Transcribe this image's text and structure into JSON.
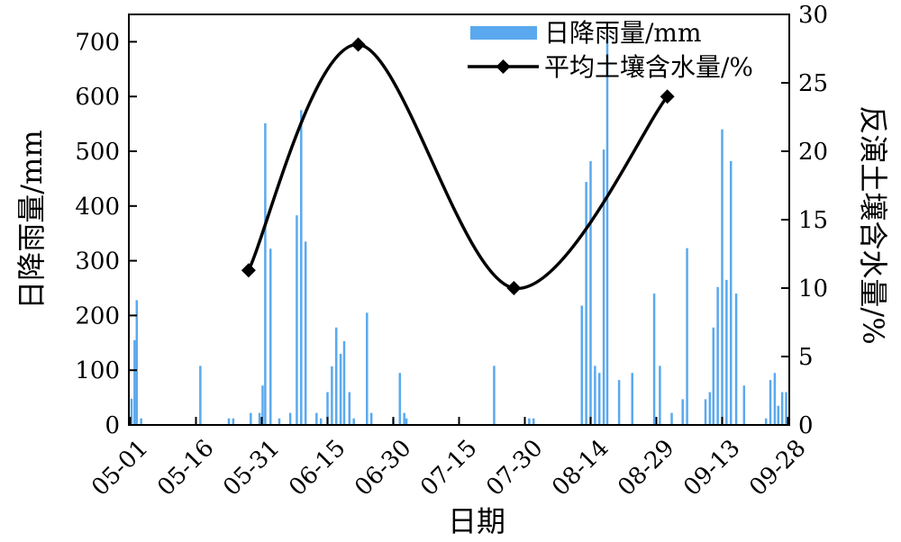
{
  "chart_data": {
    "type": "bar+line",
    "xlabel": "日期",
    "ylabel_left": "日降雨量/mm",
    "ylabel_right": "反演土壤含水量/%",
    "ylim_left": [
      0,
      750
    ],
    "ylim_right": [
      0,
      30
    ],
    "yticks_left": [
      "0",
      "100",
      "200",
      "300",
      "400",
      "500",
      "600",
      "700"
    ],
    "yticks_right": [
      "0",
      "5",
      "10",
      "15",
      "20",
      "25",
      "30"
    ],
    "x_range_days": [
      0,
      150
    ],
    "x_ticks": [
      {
        "label": "05-01",
        "day": 0
      },
      {
        "label": "05-16",
        "day": 15
      },
      {
        "label": "05-31",
        "day": 30
      },
      {
        "label": "06-15",
        "day": 45
      },
      {
        "label": "06-30",
        "day": 60
      },
      {
        "label": "07-15",
        "day": 75
      },
      {
        "label": "07-30",
        "day": 90
      },
      {
        "label": "08-14",
        "day": 105
      },
      {
        "label": "08-29",
        "day": 120
      },
      {
        "label": "09-13",
        "day": 135
      },
      {
        "label": "09-28",
        "day": 150
      }
    ],
    "series": [
      {
        "name": "日降雨量/mm",
        "type": "bar",
        "color": "#5aa9ee",
        "points": [
          [
            0.3,
            48
          ],
          [
            1.0,
            155
          ],
          [
            1.5,
            228
          ],
          [
            2.5,
            12
          ],
          [
            16,
            108
          ],
          [
            22.5,
            12
          ],
          [
            23.5,
            12
          ],
          [
            27.5,
            22
          ],
          [
            29.5,
            22
          ],
          [
            30.2,
            72
          ],
          [
            30.8,
            551
          ],
          [
            32,
            322
          ],
          [
            34,
            12
          ],
          [
            36.5,
            22
          ],
          [
            38,
            383
          ],
          [
            39,
            575
          ],
          [
            40,
            335
          ],
          [
            42.5,
            22
          ],
          [
            43.5,
            12
          ],
          [
            45,
            60
          ],
          [
            46,
            107
          ],
          [
            47,
            178
          ],
          [
            48,
            130
          ],
          [
            48.8,
            153
          ],
          [
            50,
            60
          ],
          [
            51,
            12
          ],
          [
            54,
            205
          ],
          [
            55,
            22
          ],
          [
            60,
            12
          ],
          [
            61.5,
            95
          ],
          [
            62.5,
            22
          ],
          [
            63,
            12
          ],
          [
            83,
            108
          ],
          [
            91,
            12
          ],
          [
            92,
            12
          ],
          [
            103,
            218
          ],
          [
            104,
            444
          ],
          [
            105,
            482
          ],
          [
            106,
            108
          ],
          [
            107,
            95
          ],
          [
            108,
            503
          ],
          [
            108.8,
            714
          ],
          [
            111.5,
            82
          ],
          [
            114.5,
            95
          ],
          [
            119.5,
            240
          ],
          [
            120.8,
            108
          ],
          [
            123.5,
            22
          ],
          [
            126,
            47
          ],
          [
            127,
            323
          ],
          [
            131.2,
            47
          ],
          [
            132.2,
            60
          ],
          [
            133,
            178
          ],
          [
            134,
            252
          ],
          [
            135,
            540
          ],
          [
            136,
            265
          ],
          [
            137,
            482
          ],
          [
            138.2,
            240
          ],
          [
            140,
            72
          ],
          [
            145,
            12
          ],
          [
            146,
            82
          ],
          [
            147,
            95
          ],
          [
            147.8,
            35
          ],
          [
            148.7,
            60
          ],
          [
            149.6,
            60
          ]
        ]
      },
      {
        "name": "平均土壤含水量/%",
        "type": "line",
        "color": "#000000",
        "points": [
          [
            27,
            11.3
          ],
          [
            52,
            27.8
          ],
          [
            87.5,
            10
          ],
          [
            122.5,
            24
          ]
        ]
      }
    ],
    "legend": "top-right",
    "grid": false
  }
}
